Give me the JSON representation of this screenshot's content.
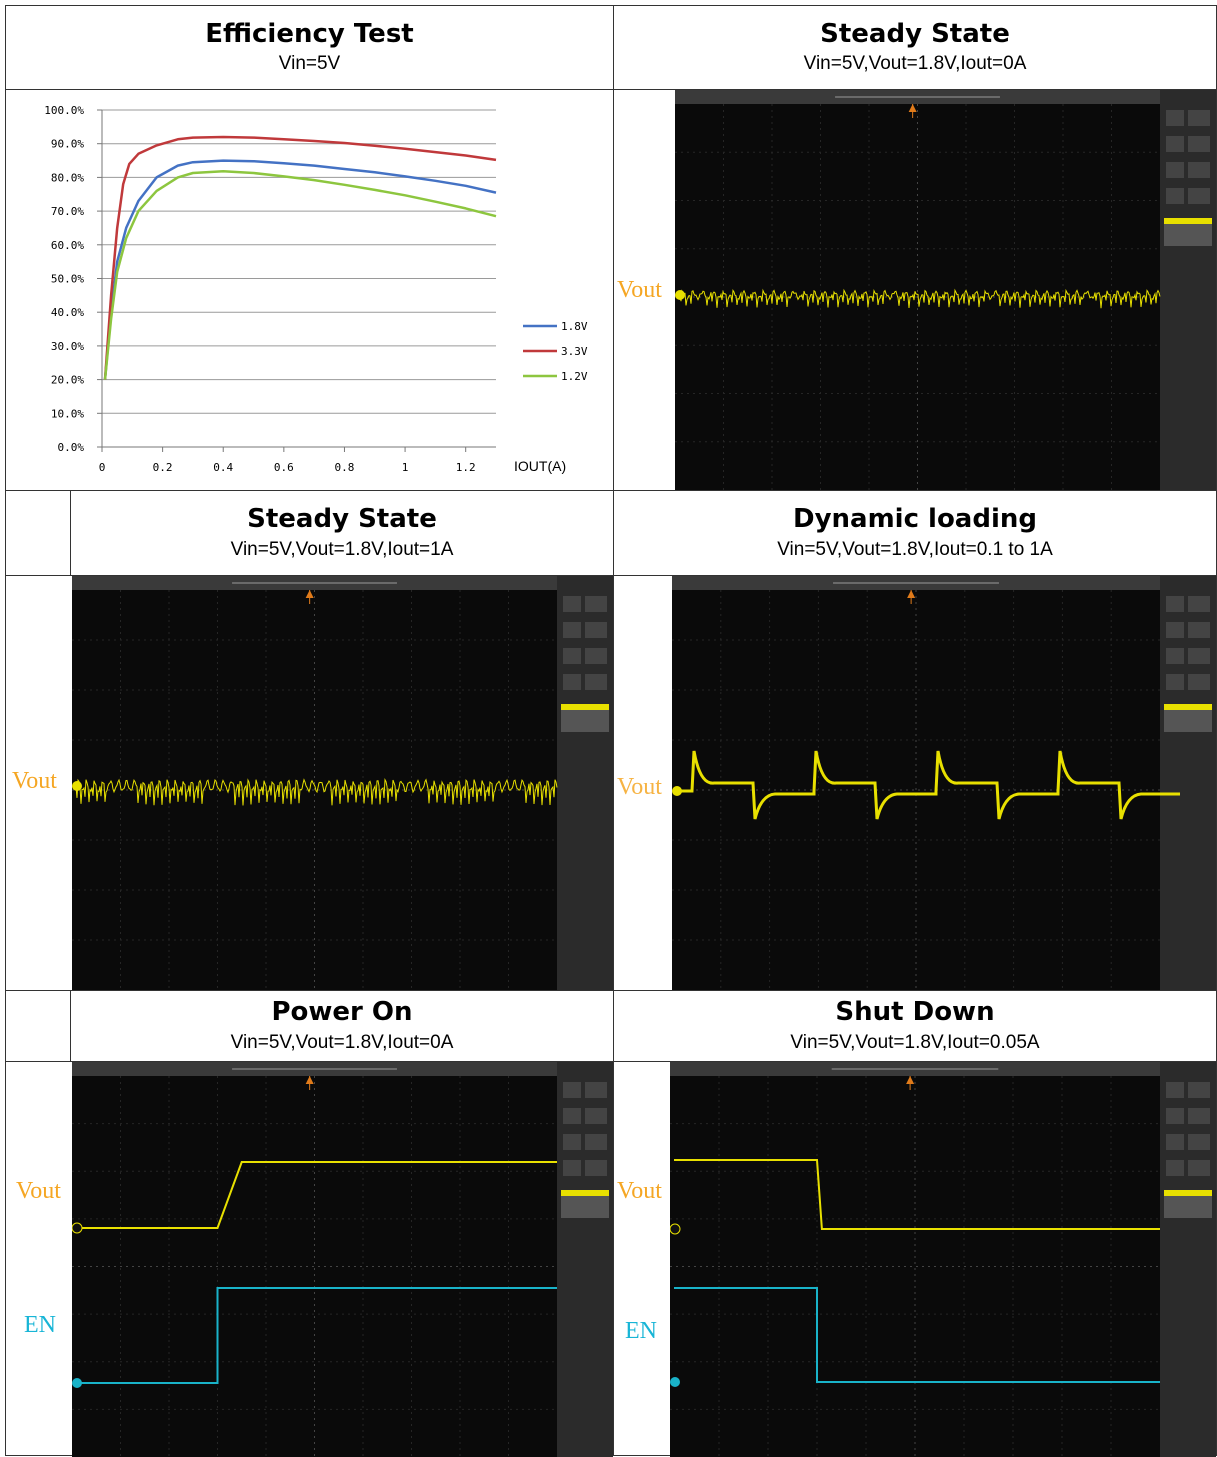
{
  "panels": {
    "efficiency": {
      "title": "Efficiency Test",
      "subtitle": "Vin=5V"
    },
    "steady0": {
      "title": "Steady State",
      "subtitle": "Vin=5V,Vout=1.8V,Iout=0A"
    },
    "steady1": {
      "title": "Steady State",
      "subtitle": "Vin=5V,Vout=1.8V,Iout=1A"
    },
    "dynamic": {
      "title": "Dynamic loading",
      "subtitle": "Vin=5V,Vout=1.8V,Iout=0.1 to 1A"
    },
    "poweron": {
      "title": "Power On",
      "subtitle": "Vin=5V,Vout=1.8V,Iout=0A"
    },
    "shutdown": {
      "title": "Shut Down",
      "subtitle": "Vin=5V,Vout=1.8V,Iout=0.05A"
    }
  },
  "labels": {
    "vout": "Vout",
    "en": "EN"
  },
  "colors": {
    "trace_yellow": "#e8e000",
    "trace_cyan": "#19b3c9",
    "vout_label": "#f5a623",
    "en_label": "#18b5d6"
  },
  "chart_data": {
    "type": "line",
    "title": "",
    "xlabel": "IOUT(A)",
    "ylabel": "",
    "xlim": [
      0,
      1.3
    ],
    "ylim": [
      0,
      100
    ],
    "xticks": [
      0,
      0.2,
      0.4,
      0.6,
      0.8,
      1,
      1.2
    ],
    "xtick_labels": [
      "0",
      "0.2",
      "0.4",
      "0.6",
      "0.8",
      "1",
      "1.2"
    ],
    "yticks": [
      0,
      10,
      20,
      30,
      40,
      50,
      60,
      70,
      80,
      90,
      100
    ],
    "ytick_labels": [
      "0.0%",
      "10.0%",
      "20.0%",
      "30.0%",
      "40.0%",
      "50.0%",
      "60.0%",
      "70.0%",
      "80.0%",
      "90.0%",
      "100.0%"
    ],
    "grid": true,
    "legend": "right",
    "series": [
      {
        "name": "1.8V",
        "color": "#4472c4",
        "x": [
          0.01,
          0.03,
          0.05,
          0.08,
          0.12,
          0.18,
          0.25,
          0.3,
          0.4,
          0.5,
          0.6,
          0.7,
          0.8,
          0.9,
          1.0,
          1.1,
          1.2,
          1.3
        ],
        "y": [
          20,
          40,
          55,
          65,
          73,
          80,
          83.5,
          84.5,
          85,
          84.8,
          84.2,
          83.5,
          82.5,
          81.5,
          80.3,
          79,
          77.5,
          75.5
        ]
      },
      {
        "name": "3.3V",
        "color": "#c0393b",
        "x": [
          0.01,
          0.03,
          0.05,
          0.07,
          0.09,
          0.12,
          0.18,
          0.25,
          0.3,
          0.4,
          0.5,
          0.6,
          0.7,
          0.8,
          0.9,
          1.0,
          1.1,
          1.2,
          1.3
        ],
        "y": [
          20,
          45,
          65,
          78,
          84,
          87,
          89.5,
          91.3,
          91.8,
          92,
          91.8,
          91.3,
          90.8,
          90.2,
          89.4,
          88.5,
          87.5,
          86.5,
          85.2
        ]
      },
      {
        "name": "1.2V",
        "color": "#8dc63f",
        "x": [
          0.01,
          0.03,
          0.05,
          0.08,
          0.12,
          0.18,
          0.25,
          0.3,
          0.4,
          0.5,
          0.6,
          0.7,
          0.8,
          0.9,
          1.0,
          1.1,
          1.2,
          1.3
        ],
        "y": [
          20,
          38,
          52,
          62,
          70,
          76,
          80,
          81.3,
          81.8,
          81.3,
          80.3,
          79.2,
          77.8,
          76.3,
          74.7,
          72.8,
          70.8,
          68.5
        ]
      }
    ]
  }
}
